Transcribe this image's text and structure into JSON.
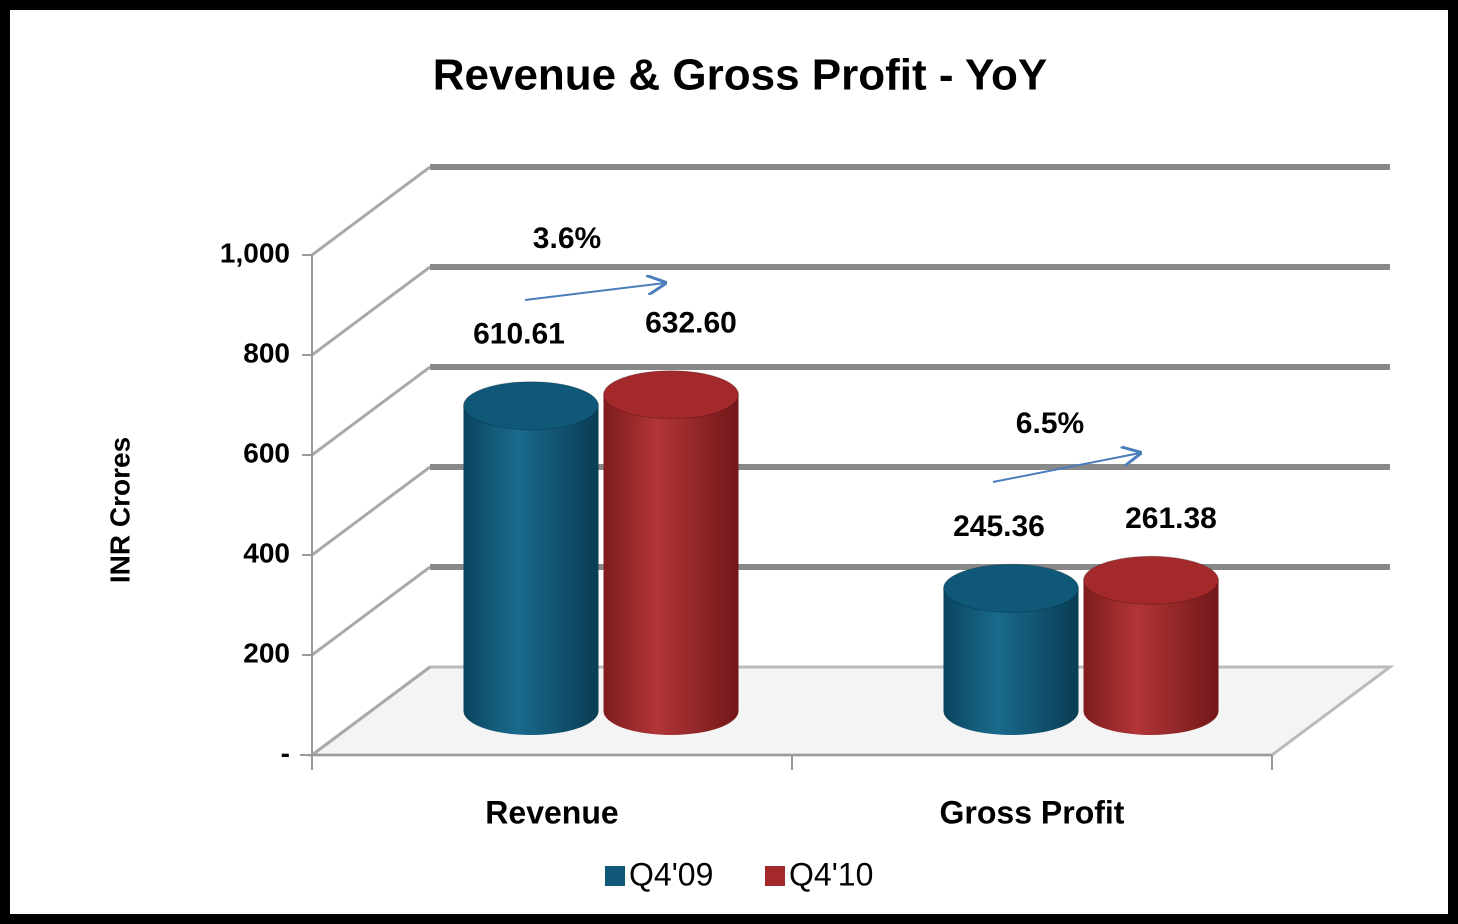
{
  "chart_data": {
    "type": "bar3d",
    "title": "Revenue & Gross Profit - YoY",
    "y_label": "INR Crores",
    "categories": [
      "Revenue",
      "Gross Profit"
    ],
    "series": [
      {
        "name": "Q4'09",
        "color": "#0f5878",
        "values": [
          610.61,
          245.36
        ],
        "value_labels": [
          "610.61",
          "245.36"
        ]
      },
      {
        "name": "Q4'10",
        "color": "#a3292b",
        "values": [
          632.6,
          261.38
        ],
        "value_labels": [
          "632.60",
          "261.38"
        ]
      }
    ],
    "annotations": [
      "3.6%",
      "6.5%"
    ],
    "ylim": [
      0,
      1000
    ],
    "yticks": [
      {
        "value": 0,
        "label": "-"
      },
      200,
      400,
      600,
      800,
      {
        "value": 1000,
        "label": "1,000"
      }
    ],
    "grid": true,
    "legend": "bottom"
  }
}
